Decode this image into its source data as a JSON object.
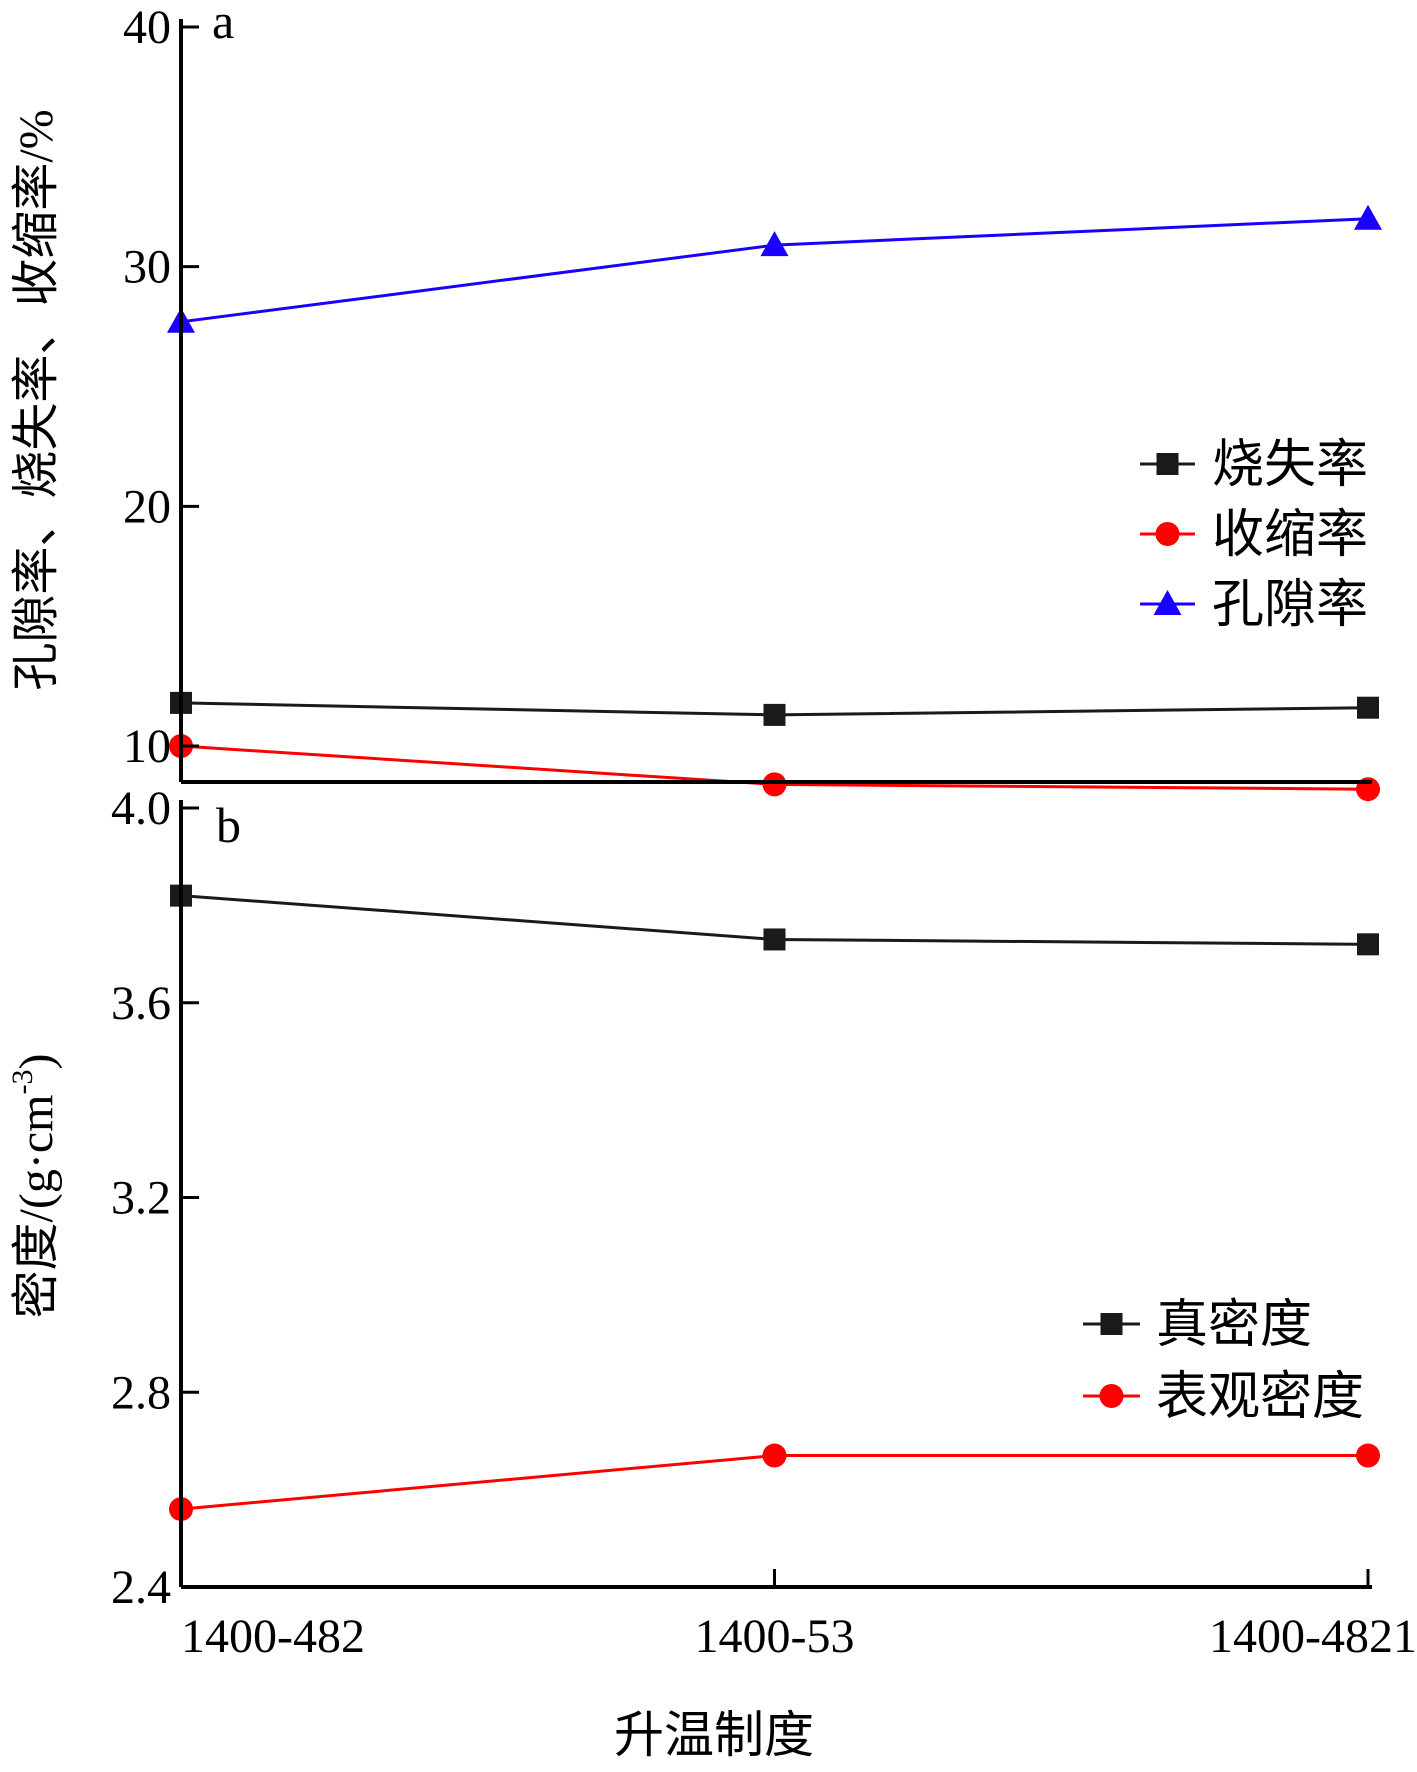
{
  "xlabel": "升温制度",
  "categories": [
    "1400-482",
    "1400-53",
    "1400-4821"
  ],
  "chart_data": [
    {
      "type": "line",
      "panel_label": "a",
      "ylabel": "孔隙率、烧失率、收缩率/%",
      "ylim": [
        8.5,
        40
      ],
      "yticks": [
        10,
        20,
        30,
        40
      ],
      "categories": [
        "1400-482",
        "1400-53",
        "1400-4821"
      ],
      "legend_position": "right",
      "series": [
        {
          "name": "烧失率",
          "marker": "square",
          "color": "#1a1a1a",
          "values": [
            11.8,
            11.3,
            11.6
          ]
        },
        {
          "name": "收缩率",
          "marker": "circle",
          "color": "#ff0000",
          "values": [
            10.0,
            8.4,
            8.2
          ]
        },
        {
          "name": "孔隙率",
          "marker": "triangle",
          "color": "#1a00ff",
          "values": [
            27.7,
            30.9,
            32.0
          ]
        }
      ]
    },
    {
      "type": "line",
      "panel_label": "b",
      "ylabel": "密度/(g·cm-3)",
      "ylim": [
        2.4,
        4.0
      ],
      "yticks": [
        "2.4",
        "2.8",
        "3.2",
        "3.6",
        "4.0"
      ],
      "categories": [
        "1400-482",
        "1400-53",
        "1400-4821"
      ],
      "legend_position": "bottom-right",
      "series": [
        {
          "name": "真密度",
          "marker": "square",
          "color": "#1a1a1a",
          "values": [
            3.82,
            3.73,
            3.72
          ]
        },
        {
          "name": "表观密度",
          "marker": "circle",
          "color": "#ff0000",
          "values": [
            2.56,
            2.67,
            2.67
          ]
        }
      ]
    }
  ]
}
